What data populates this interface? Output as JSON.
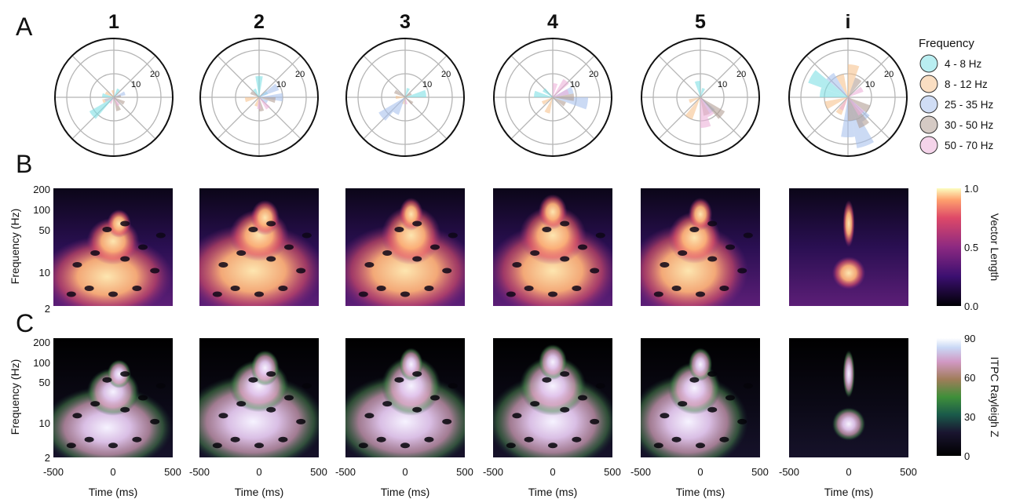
{
  "panels": {
    "a": "A",
    "b": "B",
    "c": "C"
  },
  "columns": [
    "1",
    "2",
    "3",
    "4",
    "5",
    "i"
  ],
  "legend": {
    "title": "Frequency",
    "items": [
      {
        "label": "4 - 8 Hz",
        "color": "#7fe0e5"
      },
      {
        "label": "8 - 12 Hz",
        "color": "#f6c38f"
      },
      {
        "label": "25 - 35 Hz",
        "color": "#a9c1ec"
      },
      {
        "label": "30 - 50 Hz",
        "color": "#b39f94"
      },
      {
        "label": "50 - 70 Hz",
        "color": "#edb1d9"
      }
    ]
  },
  "chart_data": [
    {
      "type": "polar_bar",
      "panel": "A",
      "ring_labels": [
        "10",
        "20"
      ],
      "r_max": 25,
      "series_names": [
        "4 - 8 Hz",
        "8 - 12 Hz",
        "25 - 35 Hz",
        "30 - 50 Hz",
        "50 - 70 Hz"
      ],
      "bin_width_deg": 20,
      "columns": [
        {
          "label": "1",
          "bars": [
            {
              "s": 0,
              "a": 220,
              "r": 12
            },
            {
              "s": 0,
              "a": 170,
              "r": 5
            },
            {
              "s": 0,
              "a": 60,
              "r": 4
            },
            {
              "s": 1,
              "a": 200,
              "r": 5
            },
            {
              "s": 1,
              "a": 150,
              "r": 4
            },
            {
              "s": 1,
              "a": 100,
              "r": 3
            },
            {
              "s": 2,
              "a": 20,
              "r": 5
            },
            {
              "s": 2,
              "a": 200,
              "r": 4
            },
            {
              "s": 3,
              "a": 330,
              "r": 5
            },
            {
              "s": 3,
              "a": 290,
              "r": 6
            },
            {
              "s": 3,
              "a": 10,
              "r": 3
            },
            {
              "s": 4,
              "a": 300,
              "r": 4
            },
            {
              "s": 4,
              "a": 240,
              "r": 3
            }
          ]
        },
        {
          "label": "2",
          "bars": [
            {
              "s": 0,
              "a": 90,
              "r": 9
            },
            {
              "s": 0,
              "a": 120,
              "r": 4
            },
            {
              "s": 0,
              "a": 30,
              "r": 4
            },
            {
              "s": 1,
              "a": 190,
              "r": 6
            },
            {
              "s": 1,
              "a": 250,
              "r": 4
            },
            {
              "s": 2,
              "a": 30,
              "r": 9
            },
            {
              "s": 2,
              "a": 0,
              "r": 10
            },
            {
              "s": 2,
              "a": 330,
              "r": 4
            },
            {
              "s": 3,
              "a": 350,
              "r": 7
            },
            {
              "s": 3,
              "a": 280,
              "r": 6
            },
            {
              "s": 3,
              "a": 150,
              "r": 4
            },
            {
              "s": 4,
              "a": 310,
              "r": 6
            },
            {
              "s": 4,
              "a": 270,
              "r": 5
            }
          ]
        },
        {
          "label": "3",
          "bars": [
            {
              "s": 0,
              "a": 10,
              "r": 9
            },
            {
              "s": 0,
              "a": 70,
              "r": 4
            },
            {
              "s": 1,
              "a": 180,
              "r": 4
            },
            {
              "s": 1,
              "a": 250,
              "r": 3
            },
            {
              "s": 2,
              "a": 220,
              "r": 13
            },
            {
              "s": 2,
              "a": 240,
              "r": 8
            },
            {
              "s": 3,
              "a": 150,
              "r": 5
            },
            {
              "s": 3,
              "a": 320,
              "r": 4
            },
            {
              "s": 3,
              "a": 30,
              "r": 3
            },
            {
              "s": 4,
              "a": 280,
              "r": 3
            }
          ]
        },
        {
          "label": "4",
          "bars": [
            {
              "s": 0,
              "a": 170,
              "r": 8
            },
            {
              "s": 0,
              "a": 140,
              "r": 5
            },
            {
              "s": 1,
              "a": 250,
              "r": 7
            },
            {
              "s": 1,
              "a": 210,
              "r": 5
            },
            {
              "s": 2,
              "a": 350,
              "r": 15
            },
            {
              "s": 2,
              "a": 20,
              "r": 9
            },
            {
              "s": 3,
              "a": 0,
              "r": 9
            },
            {
              "s": 3,
              "a": 330,
              "r": 6
            },
            {
              "s": 4,
              "a": 50,
              "r": 9
            },
            {
              "s": 4,
              "a": 80,
              "r": 6
            },
            {
              "s": 4,
              "a": 20,
              "r": 7
            }
          ]
        },
        {
          "label": "5",
          "bars": [
            {
              "s": 0,
              "a": 100,
              "r": 7
            },
            {
              "s": 0,
              "a": 70,
              "r": 4
            },
            {
              "s": 1,
              "a": 240,
              "r": 10
            },
            {
              "s": 1,
              "a": 200,
              "r": 5
            },
            {
              "s": 2,
              "a": 310,
              "r": 8
            },
            {
              "s": 3,
              "a": 320,
              "r": 12
            },
            {
              "s": 3,
              "a": 290,
              "r": 8
            },
            {
              "s": 4,
              "a": 280,
              "r": 13
            },
            {
              "s": 4,
              "a": 300,
              "r": 9
            }
          ]
        },
        {
          "label": "i",
          "bars": [
            {
              "s": 0,
              "a": 150,
              "r": 18
            },
            {
              "s": 0,
              "a": 170,
              "r": 12
            },
            {
              "s": 1,
              "a": 80,
              "r": 14
            },
            {
              "s": 1,
              "a": 110,
              "r": 10
            },
            {
              "s": 1,
              "a": 200,
              "r": 10
            },
            {
              "s": 1,
              "a": 240,
              "r": 8
            },
            {
              "s": 2,
              "a": 290,
              "r": 22
            },
            {
              "s": 2,
              "a": 270,
              "r": 17
            },
            {
              "s": 2,
              "a": 310,
              "r": 12
            },
            {
              "s": 2,
              "a": 130,
              "r": 12
            },
            {
              "s": 3,
              "a": 300,
              "r": 14
            },
            {
              "s": 3,
              "a": 330,
              "r": 10
            },
            {
              "s": 3,
              "a": 280,
              "r": 10
            },
            {
              "s": 3,
              "a": 60,
              "r": 9
            },
            {
              "s": 4,
              "a": 310,
              "r": 9
            },
            {
              "s": 4,
              "a": 240,
              "r": 6
            },
            {
              "s": 4,
              "a": 30,
              "r": 7
            }
          ]
        }
      ]
    },
    {
      "type": "heatmap",
      "panel": "B",
      "colormap": "magma",
      "xlabel": "Time (ms)",
      "ylabel": "Frequency (Hz)",
      "ylim": [
        2,
        200
      ],
      "yscale": "log",
      "yticks": [
        "200",
        "100",
        "50",
        "10",
        "2"
      ],
      "colorbar": {
        "label": "Vector Length",
        "range": [
          0.0,
          1.0
        ],
        "ticks": [
          "1.0",
          "0.5",
          "0.0"
        ]
      }
    },
    {
      "type": "heatmap",
      "panel": "C",
      "colormap": "cubehelix",
      "xlabel": "Time (ms)",
      "ylabel": "Frequency (Hz)",
      "xlim": [
        -500,
        500
      ],
      "xticks": [
        "-500",
        "0",
        "500"
      ],
      "ylim": [
        2,
        200
      ],
      "yscale": "log",
      "yticks": [
        "200",
        "100",
        "50",
        "10",
        "2"
      ],
      "colorbar": {
        "label": "ITPC Rayleigh Z",
        "range": [
          0,
          90
        ],
        "ticks": [
          "90",
          "60",
          "30",
          "0"
        ]
      }
    }
  ]
}
